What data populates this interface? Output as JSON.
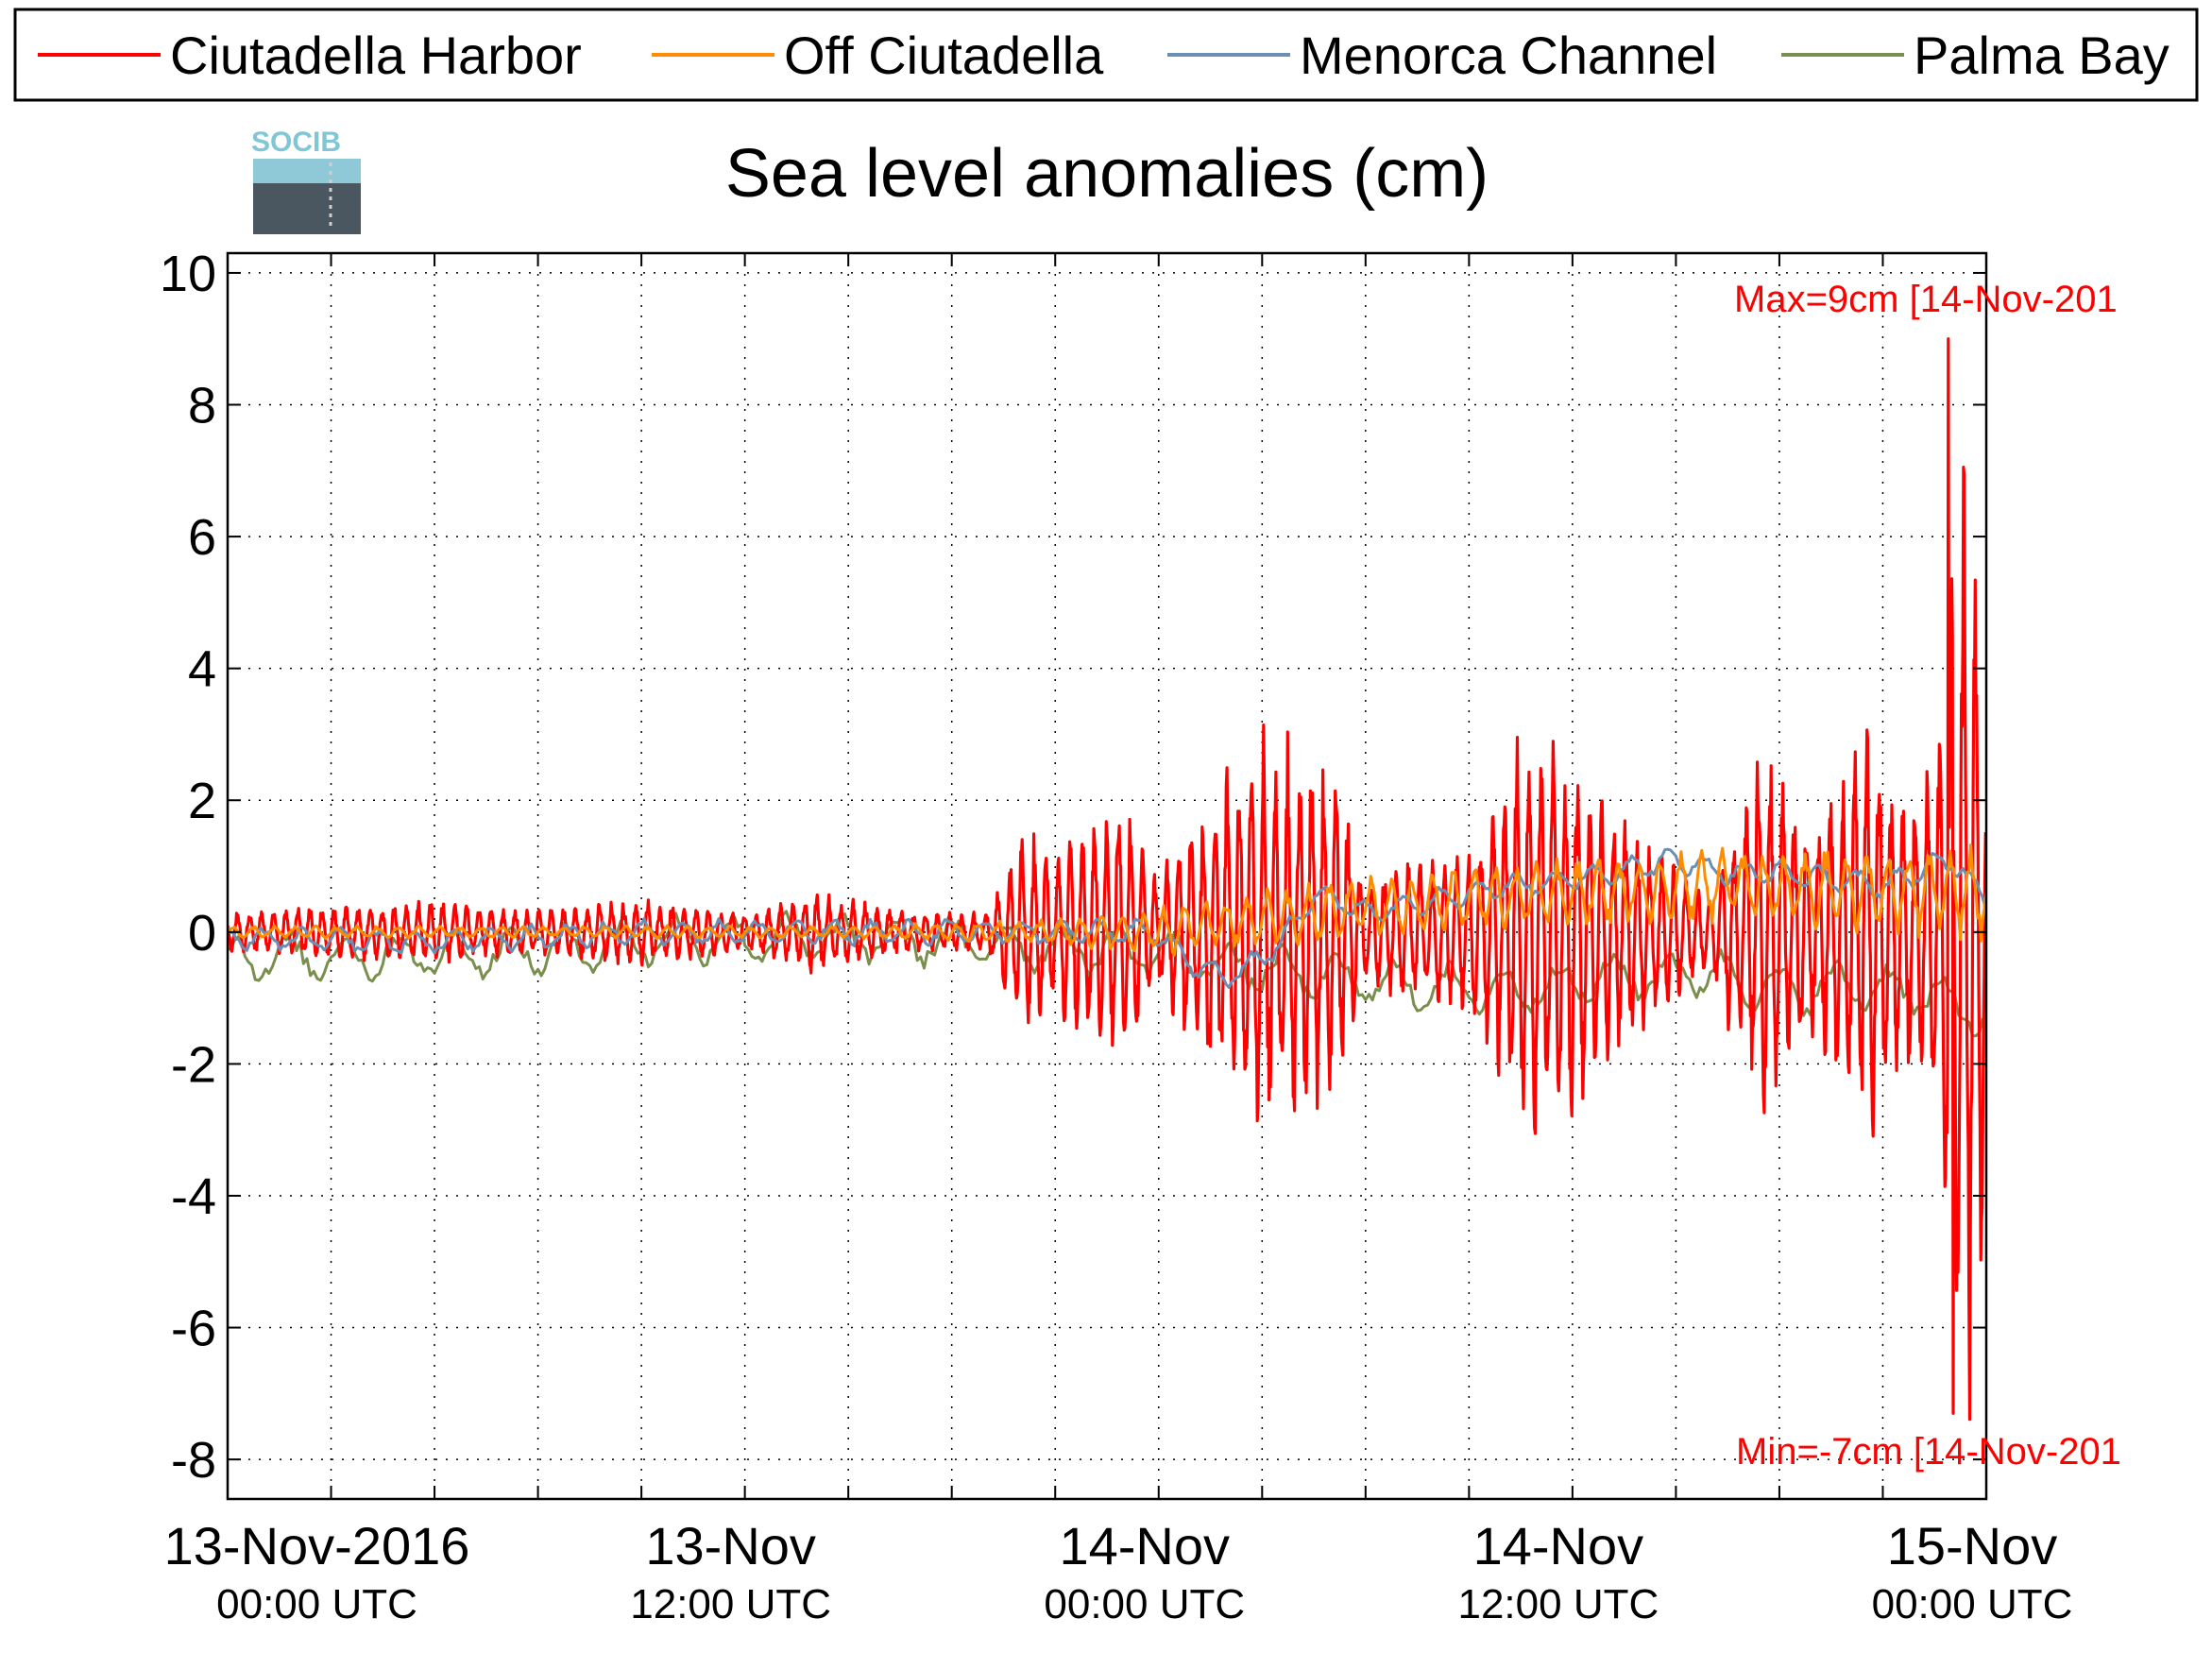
{
  "chart_data": {
    "type": "line",
    "title": "Sea level anomalies (cm)",
    "logo_text": "SOCIB",
    "ylim": [
      -8.6,
      10.3
    ],
    "yticks": [
      10,
      8,
      6,
      4,
      2,
      0,
      -2,
      -4,
      -6,
      -8
    ],
    "ytick_labels": [
      "10",
      "8",
      "6",
      "4",
      "2",
      "0",
      "-2",
      "-4",
      "-6",
      "-8"
    ],
    "xlim_hours": [
      -3,
      48
    ],
    "x_tick_labels": [
      {
        "hour": 0,
        "date": "13-Nov-2016",
        "time": "00:00 UTC"
      },
      {
        "hour": 12,
        "date": "13-Nov",
        "time": "12:00 UTC"
      },
      {
        "hour": 24,
        "date": "14-Nov",
        "time": "00:00 UTC"
      },
      {
        "hour": 36,
        "date": "14-Nov",
        "time": "12:00 UTC"
      },
      {
        "hour": 48,
        "date": "15-Nov",
        "time": "00:00 UTC"
      }
    ],
    "grid": true,
    "legend_placement": "top",
    "annotations": {
      "max_label": "Max=9cm [14-Nov-201",
      "min_label": "Min=-7cm [14-Nov-201"
    },
    "series": [
      {
        "name": "Ciutadella Harbor",
        "color": "#ff0000",
        "envelope": [
          {
            "x": -3.0,
            "amp": 0.3
          },
          {
            "x": 0.0,
            "amp": 0.4
          },
          {
            "x": 3.0,
            "amp": 0.45
          },
          {
            "x": 6.0,
            "amp": 0.35
          },
          {
            "x": 9.0,
            "amp": 0.5
          },
          {
            "x": 12.0,
            "amp": 0.3
          },
          {
            "x": 14.0,
            "amp": 0.6
          },
          {
            "x": 17.0,
            "amp": 0.3
          },
          {
            "x": 19.0,
            "amp": 0.3
          },
          {
            "x": 20.0,
            "amp": 1.5
          },
          {
            "x": 21.0,
            "amp": 1.2
          },
          {
            "x": 23.0,
            "amp": 2.0
          },
          {
            "x": 24.0,
            "amp": 0.8
          },
          {
            "x": 25.5,
            "amp": 2.2
          },
          {
            "x": 27.0,
            "amp": 3.0
          },
          {
            "x": 29.0,
            "amp": 2.8
          },
          {
            "x": 30.0,
            "amp": 0.8
          },
          {
            "x": 31.0,
            "amp": 1.0
          },
          {
            "x": 33.0,
            "amp": 1.2
          },
          {
            "x": 35.0,
            "amp": 3.5
          },
          {
            "x": 37.0,
            "amp": 2.0
          },
          {
            "x": 39.0,
            "amp": 1.0
          },
          {
            "x": 40.0,
            "amp": 0.6
          },
          {
            "x": 41.5,
            "amp": 3.0
          },
          {
            "x": 43.0,
            "amp": 1.5
          },
          {
            "x": 44.5,
            "amp": 3.5
          },
          {
            "x": 45.5,
            "amp": 2.0
          },
          {
            "x": 46.5,
            "amp": 2.5
          },
          {
            "x": 47.0,
            "amp": 6.0
          },
          {
            "x": 47.4,
            "amp": 8.0
          },
          {
            "x": 48.0,
            "amp": 4.5
          }
        ],
        "max_value": 9.0,
        "max_hour": 46.9,
        "min_value": -7.3,
        "min_hour": 46.9
      },
      {
        "name": "Off Ciutadella",
        "color": "#ff8c00",
        "envelope": [
          {
            "x": -3.0,
            "amp": 0.1
          },
          {
            "x": 15.0,
            "amp": 0.1
          },
          {
            "x": 22.0,
            "amp": 0.25
          },
          {
            "x": 25.0,
            "amp": 0.45
          },
          {
            "x": 30.0,
            "amp": 0.5
          },
          {
            "x": 36.0,
            "amp": 0.55
          },
          {
            "x": 42.0,
            "amp": 0.6
          },
          {
            "x": 48.0,
            "amp": 0.8
          }
        ],
        "trend": [
          {
            "x": -3.0,
            "y": 0.0
          },
          {
            "x": 18.0,
            "y": 0.0
          },
          {
            "x": 24.0,
            "y": 0.0
          },
          {
            "x": 27.0,
            "y": 0.2
          },
          {
            "x": 33.0,
            "y": 0.5
          },
          {
            "x": 40.0,
            "y": 0.7
          },
          {
            "x": 48.0,
            "y": 0.6
          }
        ]
      },
      {
        "name": "Menorca Channel",
        "color": "#6b8fb3",
        "trend": [
          {
            "x": -3.0,
            "y": -0.1
          },
          {
            "x": 3.0,
            "y": -0.15
          },
          {
            "x": 9.0,
            "y": 0.0
          },
          {
            "x": 15.0,
            "y": 0.0
          },
          {
            "x": 20.0,
            "y": 0.0
          },
          {
            "x": 24.0,
            "y": 0.0
          },
          {
            "x": 25.0,
            "y": -0.5
          },
          {
            "x": 26.0,
            "y": -0.7
          },
          {
            "x": 27.5,
            "y": -0.2
          },
          {
            "x": 28.5,
            "y": 0.6
          },
          {
            "x": 30.0,
            "y": 0.3
          },
          {
            "x": 32.0,
            "y": 0.5
          },
          {
            "x": 34.0,
            "y": 0.7
          },
          {
            "x": 36.0,
            "y": 0.8
          },
          {
            "x": 39.0,
            "y": 1.1
          },
          {
            "x": 40.5,
            "y": 0.9
          },
          {
            "x": 42.0,
            "y": 0.9
          },
          {
            "x": 45.0,
            "y": 0.7
          },
          {
            "x": 47.0,
            "y": 1.1
          },
          {
            "x": 48.0,
            "y": 0.5
          }
        ]
      },
      {
        "name": "Palma Bay",
        "color": "#7a8f4e",
        "trend": [
          {
            "x": -3.0,
            "y": -0.4
          },
          {
            "x": 2.0,
            "y": -0.35
          },
          {
            "x": 6.0,
            "y": -0.3
          },
          {
            "x": 10.0,
            "y": -0.1
          },
          {
            "x": 16.0,
            "y": -0.1
          },
          {
            "x": 20.0,
            "y": -0.2
          },
          {
            "x": 24.0,
            "y": -0.3
          },
          {
            "x": 26.0,
            "y": -0.5
          },
          {
            "x": 29.0,
            "y": -0.7
          },
          {
            "x": 31.0,
            "y": -0.8
          },
          {
            "x": 34.0,
            "y": -0.9
          },
          {
            "x": 37.0,
            "y": -0.7
          },
          {
            "x": 40.0,
            "y": -0.6
          },
          {
            "x": 42.0,
            "y": -0.9
          },
          {
            "x": 44.0,
            "y": -0.8
          },
          {
            "x": 46.0,
            "y": -0.9
          },
          {
            "x": 48.0,
            "y": -1.3
          }
        ]
      }
    ]
  }
}
